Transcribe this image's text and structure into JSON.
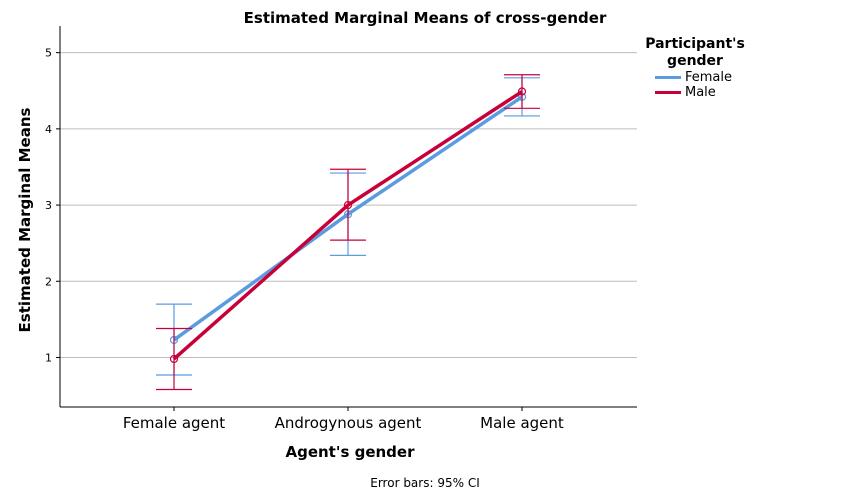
{
  "chart_data": {
    "type": "line",
    "title": "Estimated Marginal Means of cross-gender",
    "xlabel": "Agent's gender",
    "ylabel": "Estimated Marginal Means",
    "categories": [
      "Female agent",
      "Androgynous agent",
      "Male agent"
    ],
    "ylim": [
      0.35,
      5.35
    ],
    "yticks": [
      1,
      2,
      3,
      4,
      5
    ],
    "grid": true,
    "legend_title": "Participant's gender",
    "legend_placement": "right-top",
    "footnote": "Error bars: 95% CI",
    "series": [
      {
        "name": "Female",
        "color": "#5b9bdf",
        "values": [
          1.23,
          2.88,
          4.42
        ],
        "ci_lower": [
          0.77,
          2.34,
          4.17
        ],
        "ci_upper": [
          1.7,
          3.42,
          4.67
        ]
      },
      {
        "name": "Male",
        "color": "#c8003a",
        "values": [
          0.98,
          3.0,
          4.49
        ],
        "ci_lower": [
          0.58,
          2.54,
          4.27
        ],
        "ci_upper": [
          1.38,
          3.47,
          4.71
        ]
      }
    ]
  }
}
